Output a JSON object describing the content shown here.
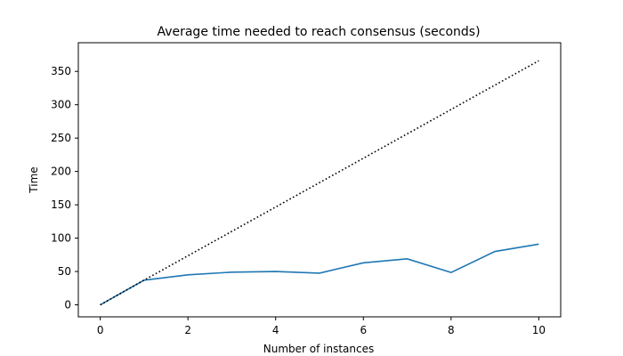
{
  "chart_data": {
    "type": "line",
    "title": "Average time needed to reach consensus (seconds)",
    "xlabel": "Number of instances",
    "ylabel": "Time",
    "xlim": [
      -0.5,
      10.5
    ],
    "ylim": [
      -18,
      393
    ],
    "x_ticks": [
      0,
      2,
      4,
      6,
      8,
      10
    ],
    "y_ticks": [
      0,
      50,
      100,
      150,
      200,
      250,
      300,
      350
    ],
    "grid": false,
    "legend": "none",
    "series": [
      {
        "style": "solid",
        "color": "#1f77b4",
        "x": [
          0,
          1,
          2,
          3,
          4,
          5,
          6,
          7,
          8,
          9,
          10
        ],
        "y": [
          0,
          37,
          45,
          49,
          50,
          47.5,
          63,
          69,
          48.5,
          80,
          91
        ]
      },
      {
        "style": "dotted",
        "color": "#000000",
        "x": [
          0,
          1,
          10
        ],
        "y": [
          0,
          37,
          366
        ]
      }
    ]
  }
}
